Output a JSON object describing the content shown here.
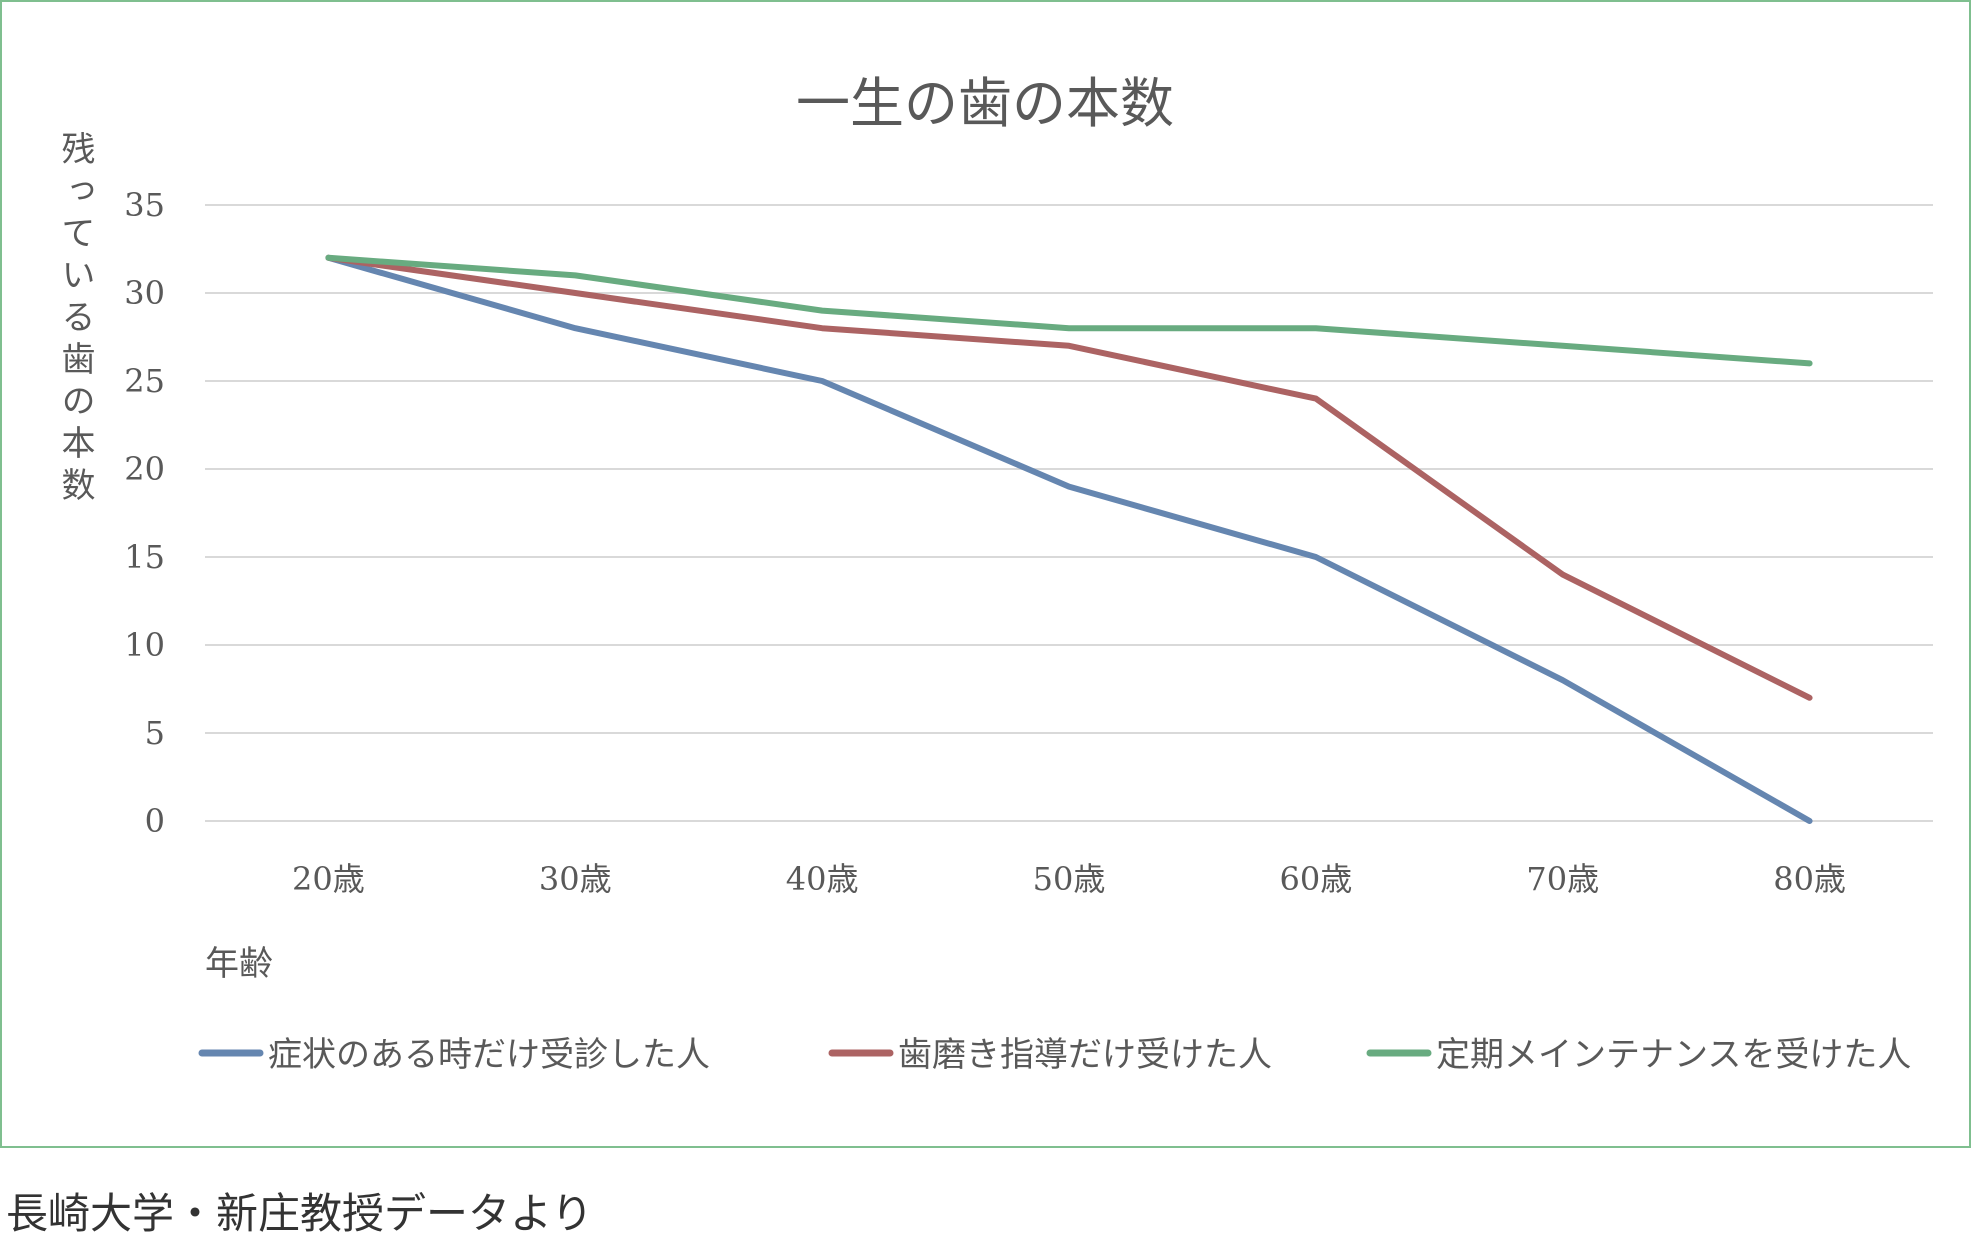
{
  "chart_data": {
    "type": "line",
    "title": "一生の歯の本数",
    "xlabel": "年齢",
    "ylabel": "残っている歯の本数",
    "categories": [
      "20歳",
      "30歳",
      "40歳",
      "50歳",
      "60歳",
      "70歳",
      "80歳"
    ],
    "ylim": [
      0,
      35
    ],
    "yticks": [
      0,
      5,
      10,
      15,
      20,
      25,
      30,
      35
    ],
    "grid": true,
    "legend_position": "bottom",
    "series": [
      {
        "name": "症状のある時だけ受診した人",
        "color": "#6586b0",
        "values": [
          32,
          28,
          25,
          19,
          15,
          8,
          0
        ]
      },
      {
        "name": "歯磨き指導だけ受けた人",
        "color": "#ac6363",
        "values": [
          32,
          30,
          28,
          27,
          24,
          14,
          7
        ]
      },
      {
        "name": "定期メインテナンスを受けた人",
        "color": "#68ab80",
        "values": [
          32,
          31,
          29,
          28,
          28,
          27,
          26
        ]
      }
    ]
  },
  "source_note": "長崎大学・新庄教授データより"
}
